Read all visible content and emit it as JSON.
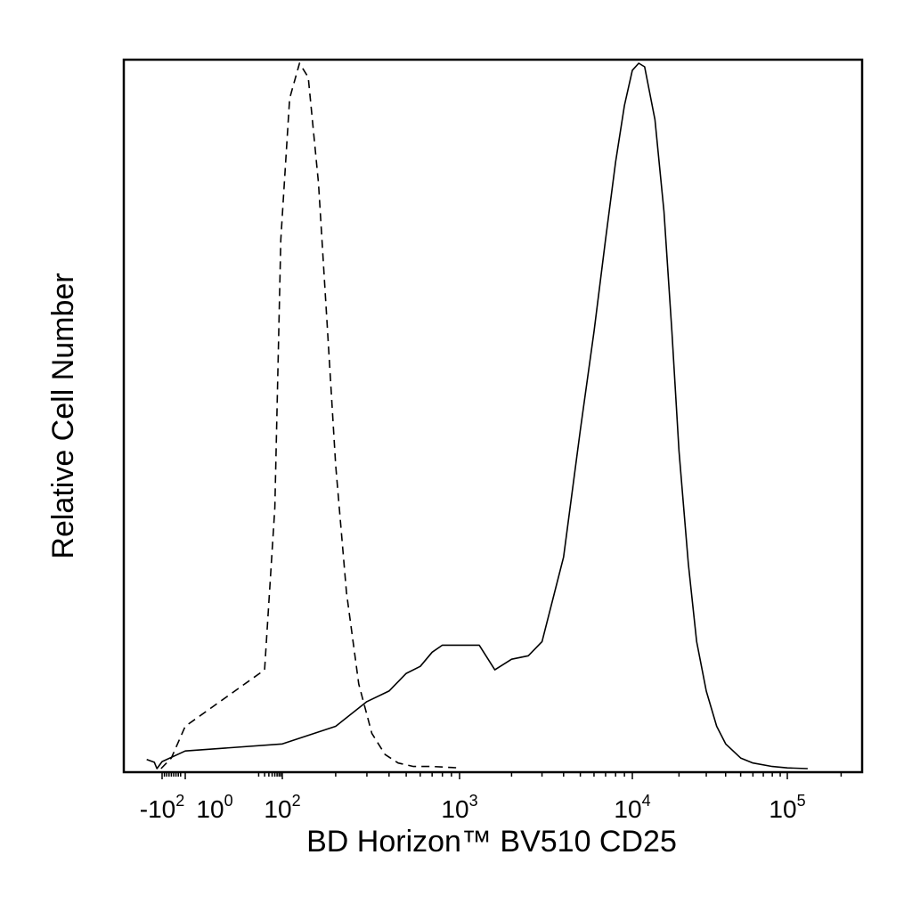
{
  "chart_data": {
    "type": "line",
    "title": "",
    "xlabel": "BD Horizon™ BV510 CD25",
    "ylabel": "Relative Cell Number",
    "x_scale": "biexponential (logicle)",
    "grid": false,
    "legend": "none",
    "x_ticks": [
      {
        "base": "-10",
        "exp": "2",
        "value": -100
      },
      {
        "base": "10",
        "exp": "0",
        "value": 1
      },
      {
        "base": "10",
        "exp": "2",
        "value": 100
      },
      {
        "base": "10",
        "exp": "3",
        "value": 1000
      },
      {
        "base": "10",
        "exp": "4",
        "value": 10000
      },
      {
        "base": "10",
        "exp": "5",
        "value": 100000
      }
    ],
    "ylim": [
      0,
      100
    ],
    "series": [
      {
        "style": "dashed",
        "color": "#000000",
        "x": [
          -120,
          -60,
          0,
          30,
          60,
          90,
          110,
          125,
          140,
          160,
          180,
          200,
          230,
          270,
          320,
          380,
          450,
          550,
          700,
          1000
        ],
        "y": [
          0,
          1.5,
          6,
          14,
          37,
          75,
          95,
          100,
          98,
          83,
          62,
          43,
          25,
          12,
          5,
          2,
          0.8,
          0.3,
          0.3,
          0.1
        ]
      },
      {
        "style": "solid",
        "color": "#000000",
        "x": [
          -400,
          -250,
          -200,
          -100,
          0,
          100,
          200,
          300,
          400,
          500,
          600,
          700,
          800,
          1000,
          1300,
          1600,
          2000,
          2500,
          3000,
          4000,
          5000,
          6000,
          7000,
          8000,
          9000,
          10000,
          11000,
          12000,
          14000,
          16000,
          18000,
          20000,
          23000,
          26000,
          30000,
          35000,
          40000,
          50000,
          60000,
          80000,
          100000,
          130000
        ],
        "y": [
          1.3,
          0.9,
          0,
          1,
          2.5,
          3.5,
          6,
          9.5,
          11,
          13.5,
          14.5,
          16.5,
          17.5,
          17.5,
          17.5,
          14,
          15.5,
          16,
          18,
          30,
          48,
          62,
          75,
          86,
          94,
          99,
          100,
          99.5,
          92,
          79,
          62,
          45,
          29,
          18,
          11,
          6,
          3.5,
          1.5,
          0.8,
          0.3,
          0.1,
          0
        ]
      }
    ]
  }
}
